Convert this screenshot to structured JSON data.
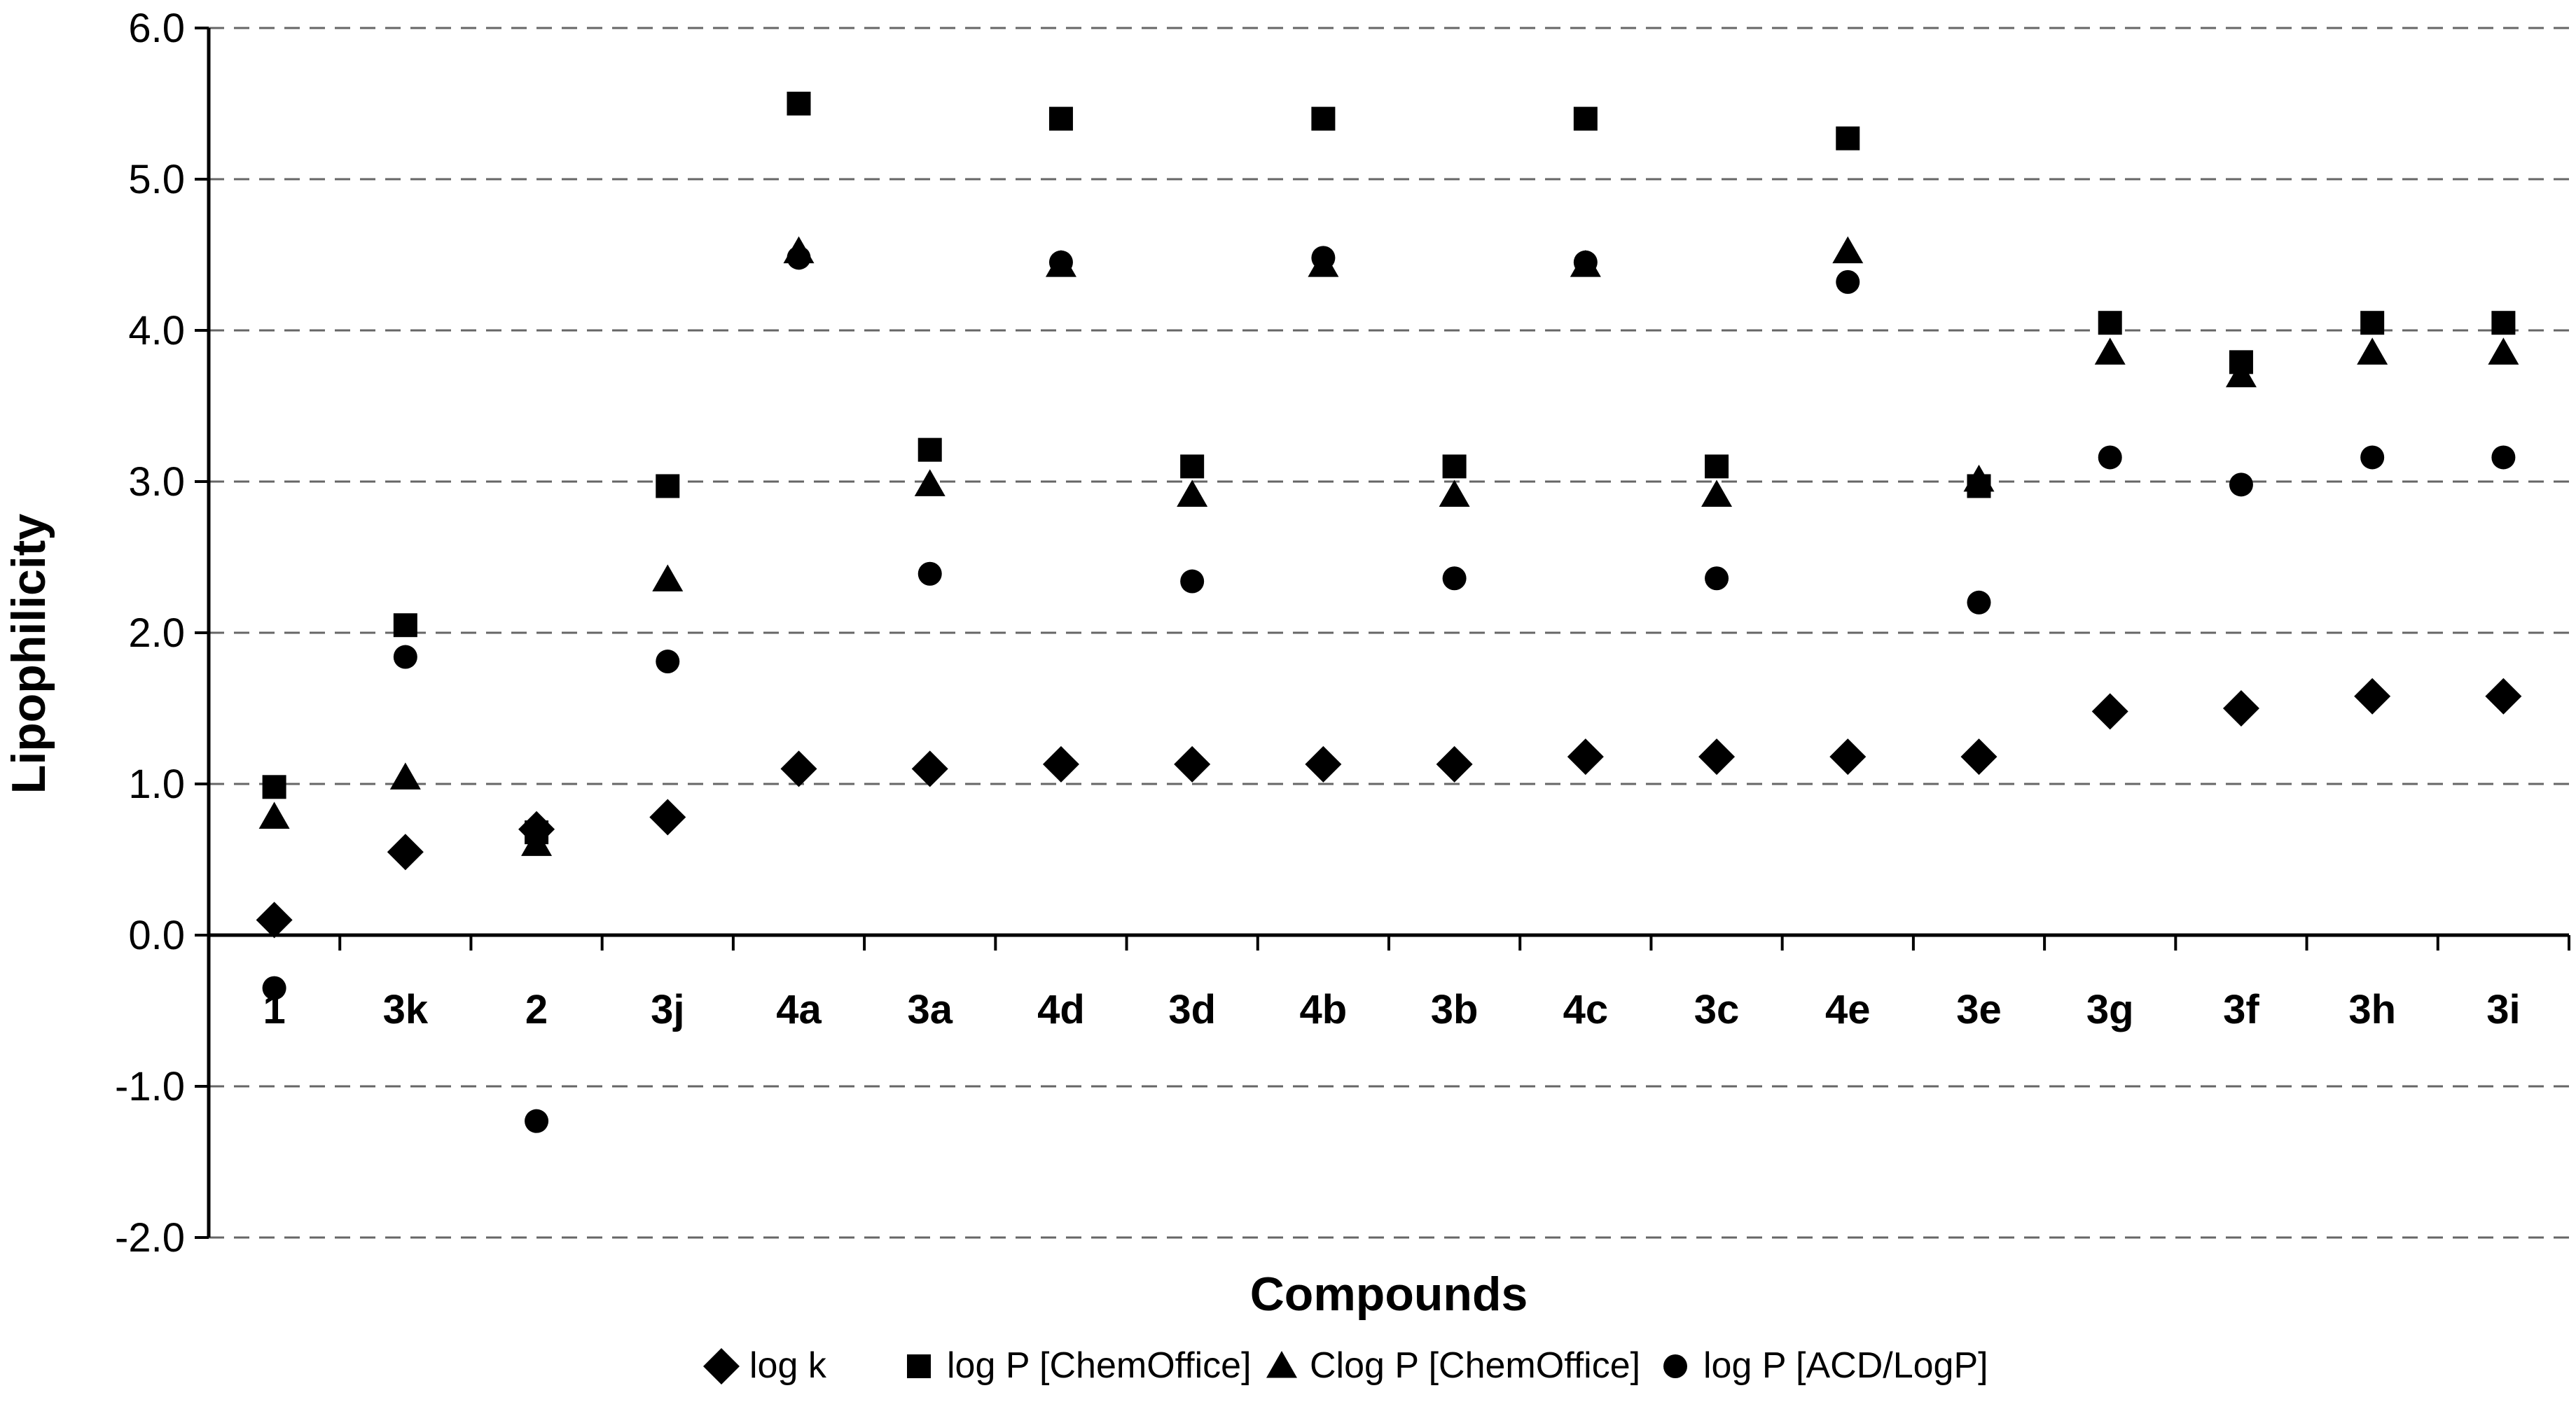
{
  "chart_data": {
    "type": "scatter",
    "title": "",
    "xlabel": "Compounds",
    "ylabel": "Lipophilicity",
    "ylim": [
      -2.0,
      6.0
    ],
    "yticks": [
      "-2.0",
      "-1.0",
      "0.0",
      "1.0",
      "2.0",
      "3.0",
      "4.0",
      "5.0",
      "6.0"
    ],
    "ytick_values": [
      -2,
      -1,
      0,
      1,
      2,
      3,
      4,
      5,
      6
    ],
    "grid": "horizontal dashed",
    "legend_position": "bottom",
    "categories": [
      "1",
      "3k",
      "2",
      "3j",
      "4a",
      "3a",
      "4d",
      "3d",
      "4b",
      "3b",
      "4c",
      "3c",
      "4e",
      "3e",
      "3g",
      "3f",
      "3h",
      "3i"
    ],
    "series": [
      {
        "name": "log k",
        "marker": "diamond",
        "values": [
          0.1,
          0.55,
          0.7,
          0.78,
          1.1,
          1.1,
          1.13,
          1.13,
          1.13,
          1.13,
          1.18,
          1.18,
          1.18,
          1.18,
          1.48,
          1.5,
          1.58,
          1.58
        ]
      },
      {
        "name": "log P [ChemOffice]",
        "marker": "square",
        "values": [
          0.98,
          2.05,
          0.68,
          2.97,
          5.5,
          3.21,
          5.4,
          3.1,
          5.4,
          3.1,
          5.4,
          3.1,
          5.27,
          2.97,
          4.05,
          3.79,
          4.05,
          4.05
        ]
      },
      {
        "name": "Clog P [ChemOffice]",
        "marker": "triangle",
        "values": [
          0.78,
          1.04,
          0.6,
          2.35,
          4.52,
          2.98,
          4.43,
          2.91,
          4.43,
          2.91,
          4.43,
          2.91,
          4.52,
          3.01,
          3.85,
          3.7,
          3.85,
          3.85
        ]
      },
      {
        "name": "log P [ACD/LogP]",
        "marker": "circle",
        "values": [
          -0.35,
          1.84,
          -1.23,
          1.81,
          4.48,
          2.39,
          4.45,
          2.34,
          4.48,
          2.36,
          4.45,
          2.36,
          4.32,
          2.2,
          3.16,
          2.98,
          3.16,
          3.16
        ]
      }
    ]
  }
}
